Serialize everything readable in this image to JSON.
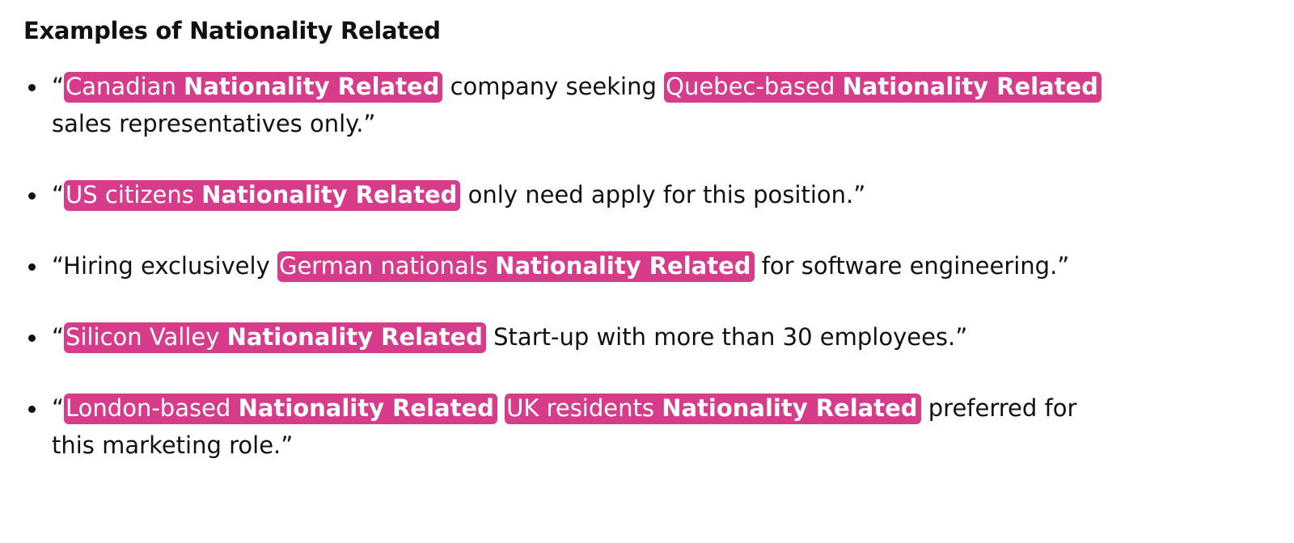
{
  "heading": "Examples of Nationality Related",
  "colors": {
    "highlight": "#d63c8a",
    "text": "#111111",
    "background": "#ffffff"
  },
  "examples": [
    {
      "open_quote": "“",
      "tag1": {
        "text": "Canadian",
        "label": "Nationality Related"
      },
      "mid": " company seeking ",
      "tag2": {
        "text": "Quebec-based",
        "label": "Nationality Related"
      },
      "end": " sales representatives only.”"
    },
    {
      "open_quote": "“",
      "tag1": {
        "text": "US citizens",
        "label": "Nationality Related"
      },
      "end": " only need apply for this position.”"
    },
    {
      "prefix": "“Hiring exclusively ",
      "tag1": {
        "text": "German nationals",
        "label": "Nationality Related"
      },
      "end": " for software engineering.”"
    },
    {
      "open_quote": "“",
      "tag1": {
        "text": "Silicon Valley",
        "label": "Nationality Related"
      },
      "end": " Start-up with more than 30 employees.”"
    },
    {
      "open_quote": "“",
      "tag1": {
        "text": "London-based",
        "label": "Nationality Related"
      },
      "mid": " ",
      "tag2": {
        "text": "UK residents",
        "label": "Nationality Related"
      },
      "end": " preferred for this marketing role.”"
    }
  ]
}
